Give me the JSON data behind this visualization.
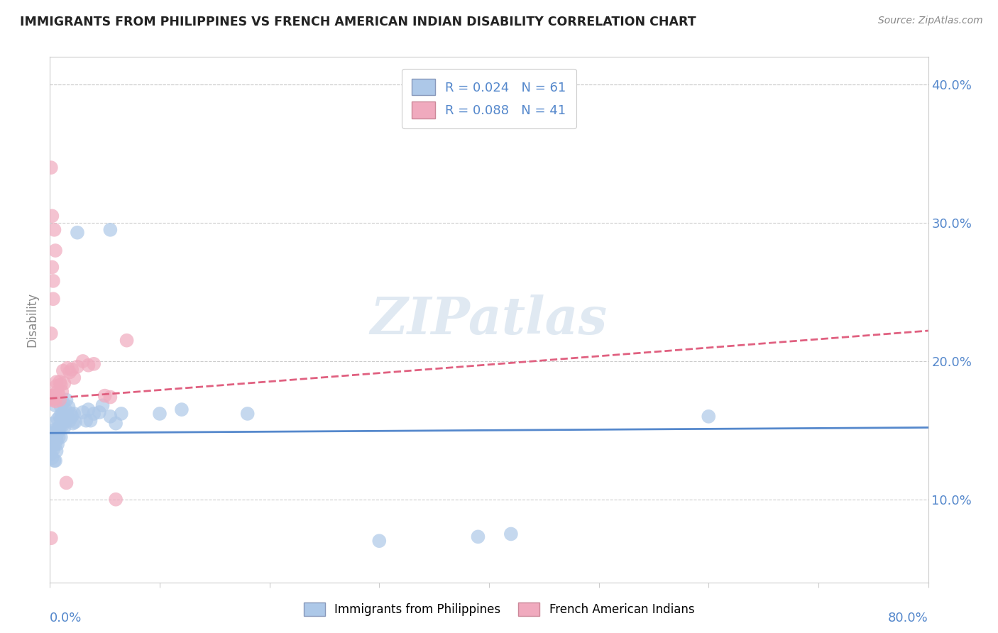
{
  "title": "IMMIGRANTS FROM PHILIPPINES VS FRENCH AMERICAN INDIAN DISABILITY CORRELATION CHART",
  "source": "Source: ZipAtlas.com",
  "ylabel": "Disability",
  "xmin": 0.0,
  "xmax": 0.8,
  "ymin": 0.04,
  "ymax": 0.42,
  "yticks": [
    0.1,
    0.2,
    0.3,
    0.4
  ],
  "ytick_labels": [
    "10.0%",
    "20.0%",
    "30.0%",
    "40.0%"
  ],
  "blue_R": "R = 0.024",
  "blue_N": "N = 61",
  "pink_R": "R = 0.088",
  "pink_N": "N = 41",
  "blue_fill": "#adc8e8",
  "pink_fill": "#f0aabe",
  "blue_line_color": "#5588cc",
  "pink_line_color": "#e06080",
  "watermark": "ZIPatlas",
  "blue_scatter": [
    [
      0.001,
      0.138
    ],
    [
      0.001,
      0.133
    ],
    [
      0.002,
      0.13
    ],
    [
      0.002,
      0.142
    ],
    [
      0.003,
      0.148
    ],
    [
      0.003,
      0.136
    ],
    [
      0.003,
      0.155
    ],
    [
      0.004,
      0.145
    ],
    [
      0.004,
      0.128
    ],
    [
      0.004,
      0.15
    ],
    [
      0.005,
      0.128
    ],
    [
      0.005,
      0.14
    ],
    [
      0.005,
      0.168
    ],
    [
      0.006,
      0.143
    ],
    [
      0.006,
      0.135
    ],
    [
      0.007,
      0.148
    ],
    [
      0.007,
      0.14
    ],
    [
      0.007,
      0.158
    ],
    [
      0.008,
      0.152
    ],
    [
      0.008,
      0.145
    ],
    [
      0.009,
      0.16
    ],
    [
      0.009,
      0.152
    ],
    [
      0.01,
      0.167
    ],
    [
      0.01,
      0.158
    ],
    [
      0.01,
      0.145
    ],
    [
      0.011,
      0.153
    ],
    [
      0.011,
      0.162
    ],
    [
      0.012,
      0.156
    ],
    [
      0.012,
      0.17
    ],
    [
      0.013,
      0.16
    ],
    [
      0.013,
      0.152
    ],
    [
      0.014,
      0.165
    ],
    [
      0.015,
      0.157
    ],
    [
      0.015,
      0.172
    ],
    [
      0.016,
      0.16
    ],
    [
      0.017,
      0.167
    ],
    [
      0.018,
      0.157
    ],
    [
      0.019,
      0.162
    ],
    [
      0.02,
      0.16
    ],
    [
      0.021,
      0.155
    ],
    [
      0.022,
      0.162
    ],
    [
      0.023,
      0.156
    ],
    [
      0.03,
      0.163
    ],
    [
      0.033,
      0.157
    ],
    [
      0.035,
      0.165
    ],
    [
      0.037,
      0.157
    ],
    [
      0.04,
      0.162
    ],
    [
      0.045,
      0.163
    ],
    [
      0.048,
      0.168
    ],
    [
      0.055,
      0.16
    ],
    [
      0.06,
      0.155
    ],
    [
      0.065,
      0.162
    ],
    [
      0.1,
      0.162
    ],
    [
      0.12,
      0.165
    ],
    [
      0.18,
      0.162
    ],
    [
      0.025,
      0.293
    ],
    [
      0.055,
      0.295
    ],
    [
      0.3,
      0.07
    ],
    [
      0.39,
      0.073
    ],
    [
      0.42,
      0.075
    ],
    [
      0.6,
      0.16
    ]
  ],
  "pink_scatter": [
    [
      0.001,
      0.174
    ],
    [
      0.002,
      0.175
    ],
    [
      0.002,
      0.172
    ],
    [
      0.003,
      0.175
    ],
    [
      0.003,
      0.173
    ],
    [
      0.004,
      0.175
    ],
    [
      0.004,
      0.173
    ],
    [
      0.005,
      0.175
    ],
    [
      0.005,
      0.171
    ],
    [
      0.006,
      0.185
    ],
    [
      0.006,
      0.182
    ],
    [
      0.007,
      0.178
    ],
    [
      0.008,
      0.176
    ],
    [
      0.009,
      0.172
    ],
    [
      0.009,
      0.185
    ],
    [
      0.01,
      0.183
    ],
    [
      0.011,
      0.178
    ],
    [
      0.012,
      0.193
    ],
    [
      0.013,
      0.184
    ],
    [
      0.016,
      0.195
    ],
    [
      0.018,
      0.192
    ],
    [
      0.02,
      0.194
    ],
    [
      0.022,
      0.188
    ],
    [
      0.025,
      0.196
    ],
    [
      0.03,
      0.2
    ],
    [
      0.035,
      0.197
    ],
    [
      0.04,
      0.198
    ],
    [
      0.05,
      0.175
    ],
    [
      0.055,
      0.174
    ],
    [
      0.07,
      0.215
    ],
    [
      0.001,
      0.34
    ],
    [
      0.004,
      0.295
    ],
    [
      0.005,
      0.28
    ],
    [
      0.002,
      0.268
    ],
    [
      0.003,
      0.258
    ],
    [
      0.002,
      0.305
    ],
    [
      0.001,
      0.22
    ],
    [
      0.003,
      0.245
    ],
    [
      0.06,
      0.1
    ],
    [
      0.001,
      0.072
    ],
    [
      0.015,
      0.112
    ]
  ],
  "blue_trendline": [
    [
      0.0,
      0.148
    ],
    [
      0.8,
      0.152
    ]
  ],
  "pink_trendline": [
    [
      0.0,
      0.173
    ],
    [
      0.8,
      0.222
    ]
  ]
}
